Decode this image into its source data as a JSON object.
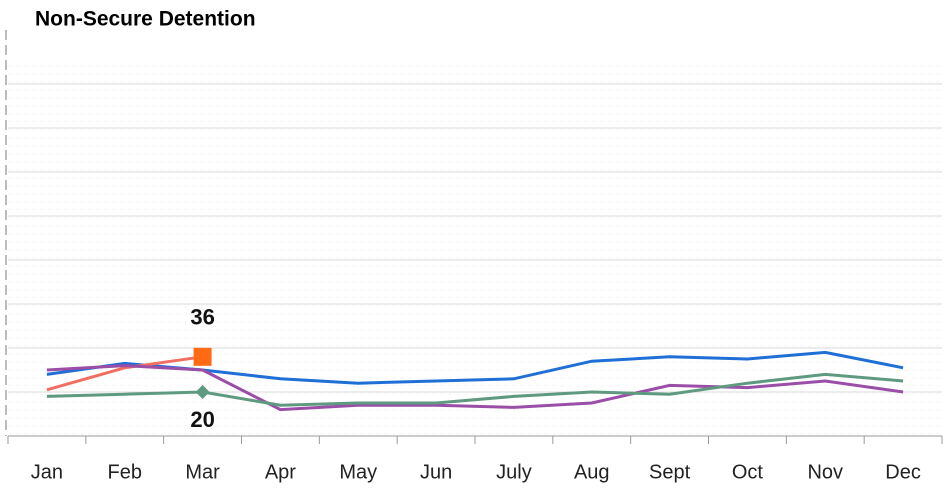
{
  "chart_data": {
    "type": "line",
    "title": "Non-Secure Detention",
    "categories": [
      "Jan",
      "Feb",
      "Mar",
      "Apr",
      "May",
      "Jun",
      "July",
      "Aug",
      "Sept",
      "Oct",
      "Nov",
      "Dec"
    ],
    "ylim": [
      0,
      160
    ],
    "yticks": [
      0,
      20,
      40,
      60,
      80,
      100,
      120,
      140,
      160
    ],
    "grid": true,
    "series": [
      {
        "color": "#1f6fd6",
        "values": [
          28,
          33,
          30,
          26,
          24,
          25,
          26,
          34,
          36,
          35,
          38,
          31
        ]
      },
      {
        "color": "#ef6f63",
        "marker_color": "#ff6a13",
        "marker": "square",
        "label_position": "above",
        "values": [
          21,
          31,
          36,
          null,
          null,
          null,
          null,
          null,
          null,
          null,
          null,
          null
        ],
        "value_labels": [
          null,
          null,
          "36",
          null,
          null,
          null,
          null,
          null,
          null,
          null,
          null,
          null
        ]
      },
      {
        "color": "#9b4ea8",
        "values": [
          30,
          32,
          30,
          12,
          14,
          14,
          13,
          15,
          23,
          22,
          25,
          20
        ]
      },
      {
        "color": "#5f9a80",
        "marker_color": "#5f9a80",
        "marker": "diamond",
        "label_position": "below",
        "values": [
          18,
          19,
          20,
          14,
          15,
          15,
          18,
          20,
          19,
          24,
          28,
          25
        ],
        "value_labels": [
          null,
          null,
          "20",
          null,
          null,
          null,
          null,
          null,
          null,
          null,
          null,
          null
        ]
      }
    ]
  }
}
